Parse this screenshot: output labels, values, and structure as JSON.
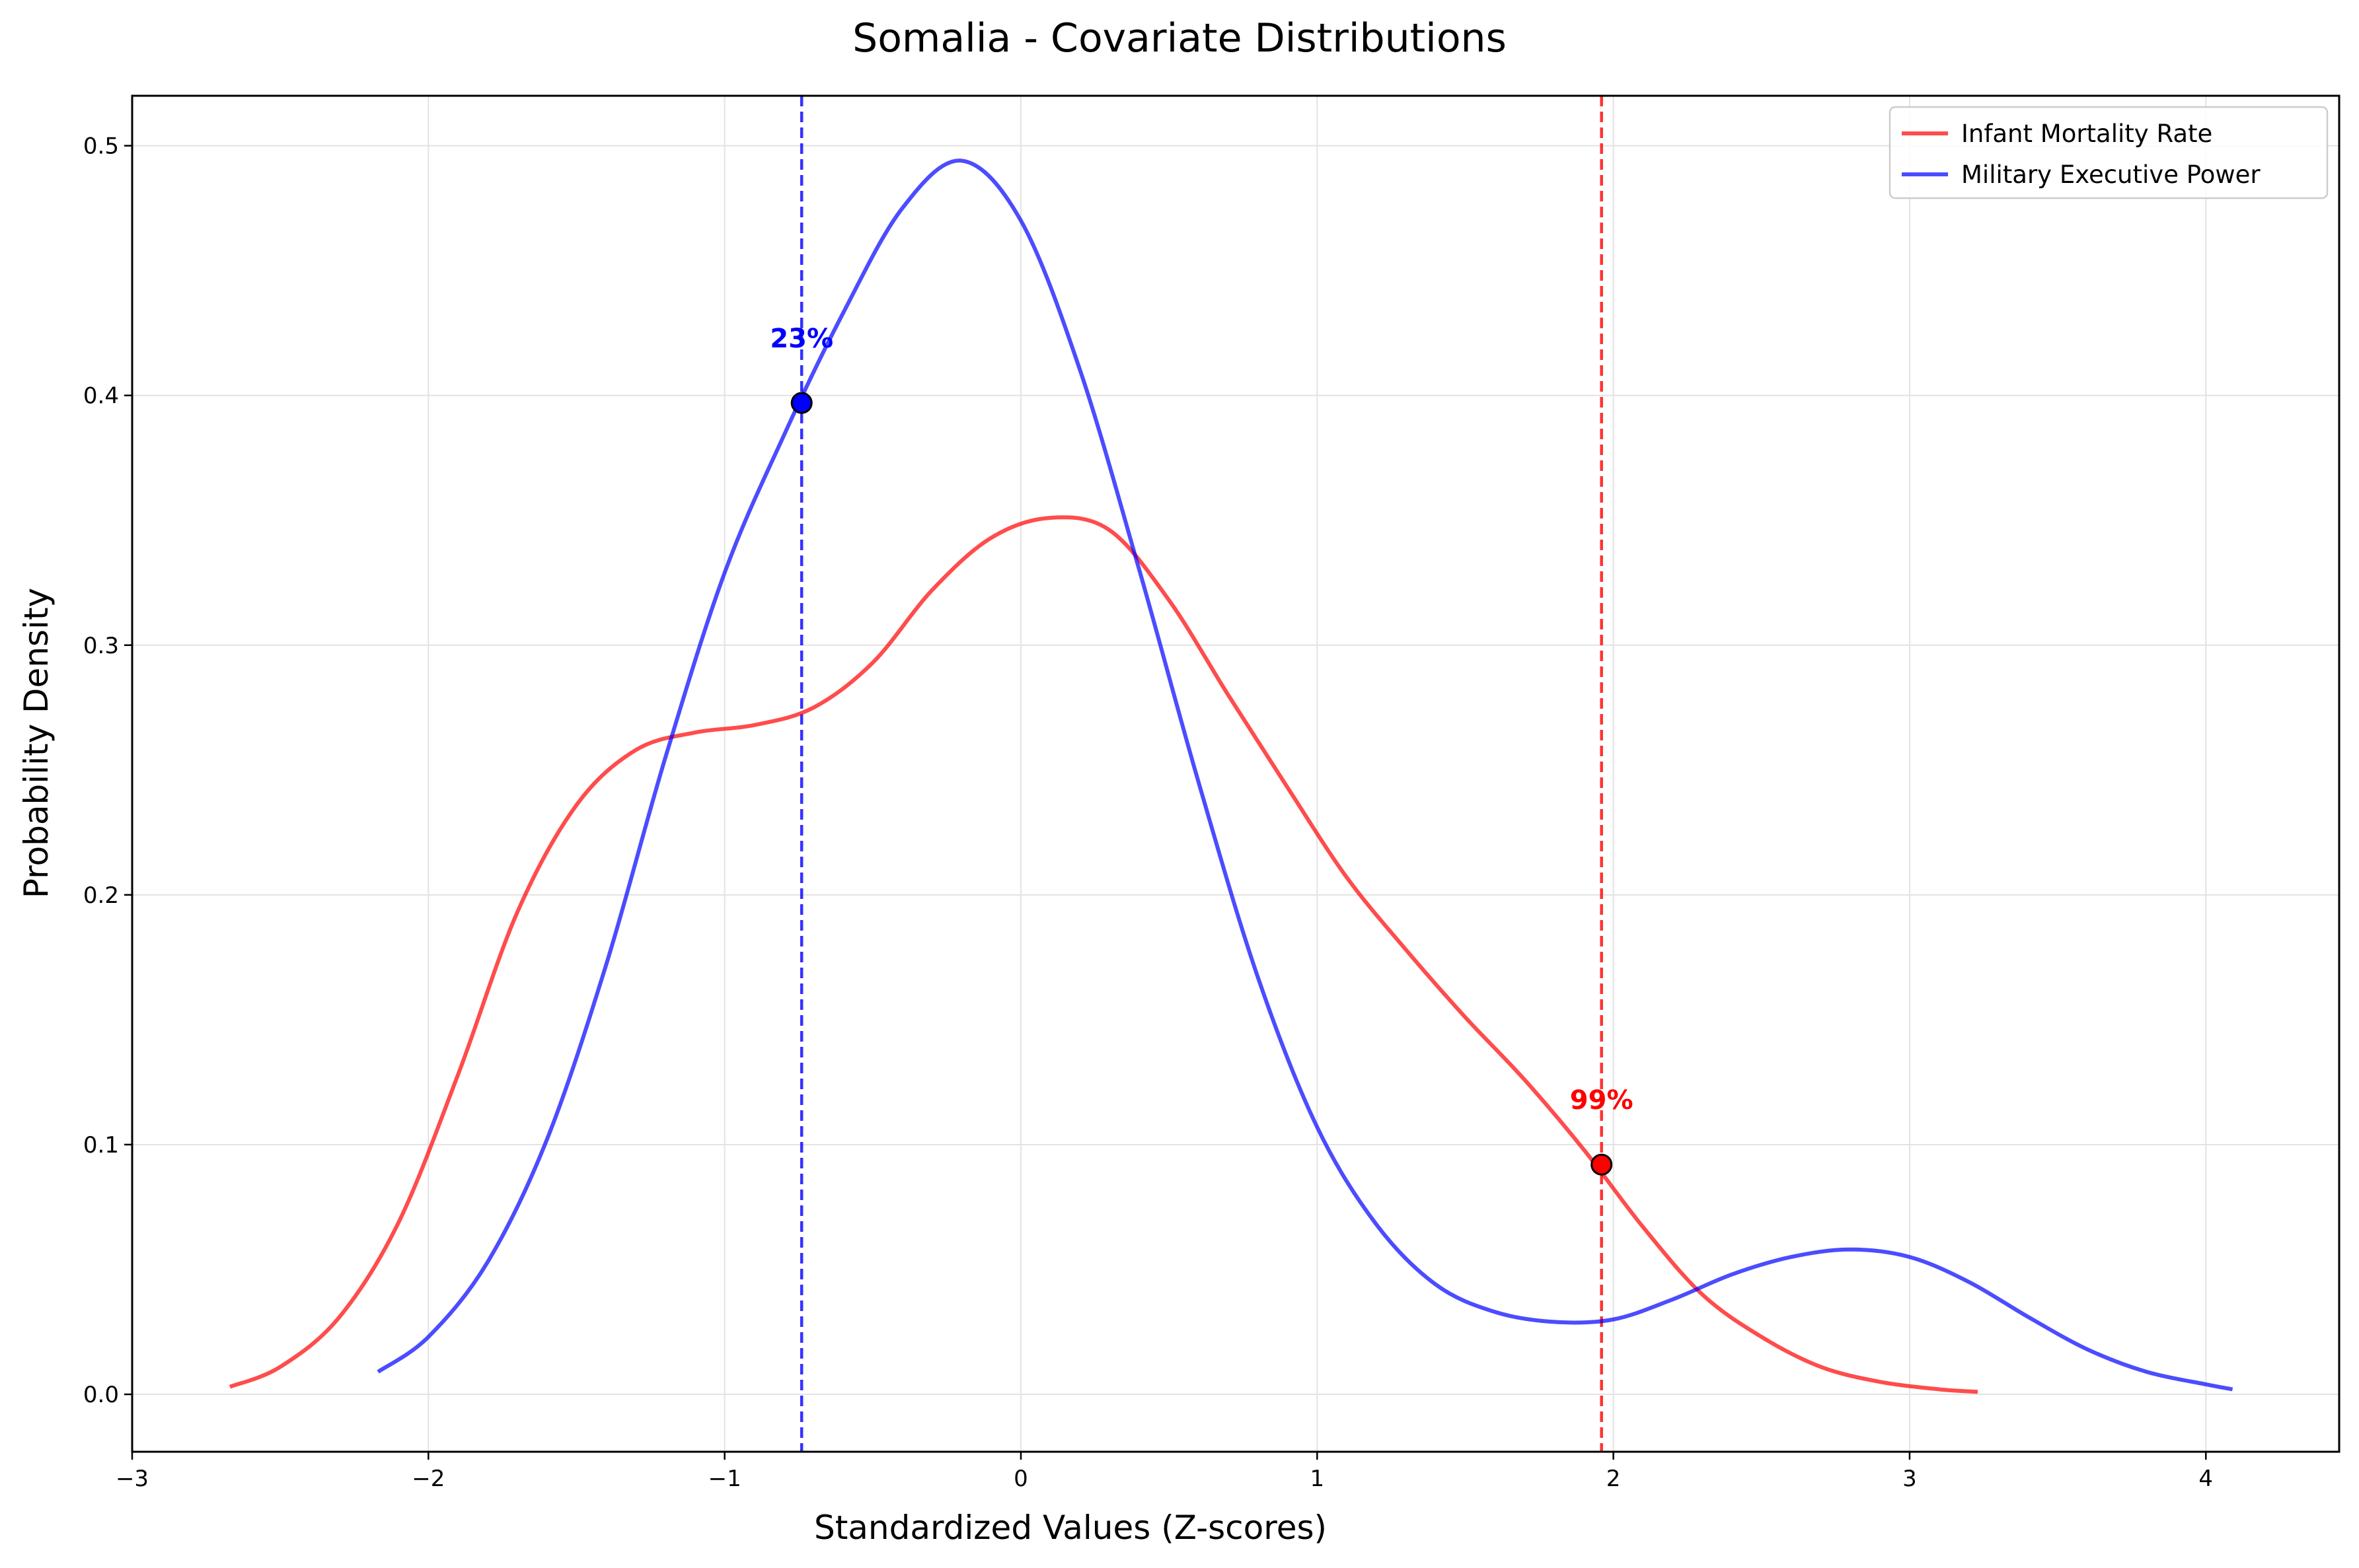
{
  "chart_data": {
    "type": "line",
    "title": "Somalia - Covariate Distributions",
    "xlabel": "Standardized Values (Z-scores)",
    "ylabel": "Probability Density",
    "xlim": [
      -3,
      4.45
    ],
    "ylim": [
      -0.023,
      0.52
    ],
    "xticks": [
      -3,
      -2,
      -1,
      0,
      1,
      2,
      3,
      4
    ],
    "xtick_labels": [
      "−3",
      "−2",
      "−1",
      "0",
      "1",
      "2",
      "3",
      "4"
    ],
    "yticks": [
      0.0,
      0.1,
      0.2,
      0.3,
      0.4,
      0.5
    ],
    "ytick_labels": [
      "0.0",
      "0.1",
      "0.2",
      "0.3",
      "0.4",
      "0.5"
    ],
    "grid": true,
    "legend_position": "top-right",
    "series": [
      {
        "name": "Infant Mortality Rate",
        "color": "#ff0000",
        "x": [
          -2.67,
          -2.5,
          -2.3,
          -2.1,
          -1.9,
          -1.7,
          -1.5,
          -1.3,
          -1.1,
          -0.9,
          -0.7,
          -0.5,
          -0.3,
          -0.1,
          0.1,
          0.3,
          0.5,
          0.7,
          0.9,
          1.1,
          1.3,
          1.5,
          1.7,
          1.9,
          2.1,
          2.3,
          2.5,
          2.7,
          2.9,
          3.1,
          3.23
        ],
        "y": [
          0.003,
          0.011,
          0.031,
          0.069,
          0.128,
          0.193,
          0.236,
          0.258,
          0.265,
          0.268,
          0.275,
          0.293,
          0.322,
          0.343,
          0.351,
          0.346,
          0.318,
          0.28,
          0.243,
          0.207,
          0.178,
          0.151,
          0.126,
          0.098,
          0.067,
          0.04,
          0.023,
          0.011,
          0.005,
          0.002,
          0.001
        ]
      },
      {
        "name": "Military Executive Power",
        "color": "#0000ff",
        "x": [
          -2.17,
          -2.0,
          -1.8,
          -1.6,
          -1.4,
          -1.2,
          -1.0,
          -0.8,
          -0.6,
          -0.4,
          -0.2,
          0.0,
          0.2,
          0.4,
          0.6,
          0.8,
          1.0,
          1.2,
          1.4,
          1.6,
          1.8,
          2.0,
          2.2,
          2.4,
          2.6,
          2.8,
          3.0,
          3.2,
          3.4,
          3.6,
          3.8,
          4.0,
          4.09
        ],
        "y": [
          0.009,
          0.023,
          0.053,
          0.102,
          0.172,
          0.255,
          0.329,
          0.384,
          0.433,
          0.475,
          0.494,
          0.47,
          0.41,
          0.33,
          0.245,
          0.167,
          0.107,
          0.068,
          0.044,
          0.033,
          0.029,
          0.03,
          0.038,
          0.048,
          0.055,
          0.058,
          0.055,
          0.045,
          0.031,
          0.018,
          0.009,
          0.004,
          0.002
        ]
      }
    ],
    "markers": [
      {
        "series": "Infant Mortality Rate",
        "x": 1.96,
        "y": 0.092,
        "label": "99%",
        "color": "#ff0000"
      },
      {
        "series": "Military Executive Power",
        "x": -0.74,
        "y": 0.397,
        "label": "23%",
        "color": "#0000ff"
      }
    ]
  }
}
